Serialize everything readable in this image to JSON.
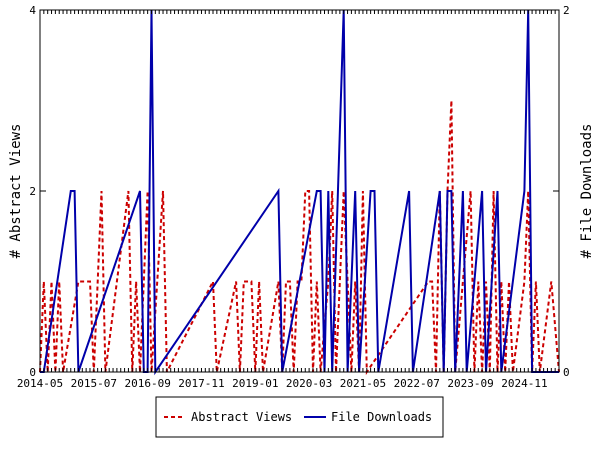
{
  "chart_data": {
    "type": "line",
    "title": "",
    "x_tick_labels": [
      "2014-05",
      "2015-07",
      "2016-09",
      "2017-11",
      "2019-01",
      "2020-03",
      "2021-05",
      "2022-07",
      "2023-09",
      "2024-11"
    ],
    "x_start": "2014-05",
    "x_end": "2025-08",
    "ylabel_left": "# Abstract Views",
    "ylabel_right": "# File Downloads",
    "ylim_left": [
      0,
      4
    ],
    "ylim_right": [
      0,
      2
    ],
    "yticks_left": [
      "0",
      "2",
      "4"
    ],
    "yticks_right": [
      "0",
      "1",
      "2"
    ],
    "grid": false,
    "legend_position": "bottom",
    "series": [
      {
        "name": "Abstract Views",
        "axis": "left",
        "color": "#cc0000",
        "style": "dashed",
        "points": [
          [
            "2014-05",
            0
          ],
          [
            "2014-06",
            1
          ],
          [
            "2014-07",
            0
          ],
          [
            "2014-08",
            1
          ],
          [
            "2014-09",
            0
          ],
          [
            "2014-10",
            1
          ],
          [
            "2014-11",
            0
          ],
          [
            "2015-03",
            1
          ],
          [
            "2015-04",
            1
          ],
          [
            "2015-05",
            1
          ],
          [
            "2015-06",
            1
          ],
          [
            "2015-07",
            0
          ],
          [
            "2015-08",
            1
          ],
          [
            "2015-09",
            2
          ],
          [
            "2015-10",
            0
          ],
          [
            "2016-04",
            2
          ],
          [
            "2016-05",
            0
          ],
          [
            "2016-06",
            1
          ],
          [
            "2016-07",
            0
          ],
          [
            "2016-08",
            1
          ],
          [
            "2016-09",
            2
          ],
          [
            "2016-10",
            0
          ],
          [
            "2017-01",
            2
          ],
          [
            "2017-02",
            0
          ],
          [
            "2018-02",
            1
          ],
          [
            "2018-03",
            0
          ],
          [
            "2018-08",
            1
          ],
          [
            "2018-09",
            0
          ],
          [
            "2018-10",
            1
          ],
          [
            "2018-11",
            1
          ],
          [
            "2018-12",
            1
          ],
          [
            "2019-01",
            0
          ],
          [
            "2019-02",
            1
          ],
          [
            "2019-03",
            0
          ],
          [
            "2019-07",
            1
          ],
          [
            "2019-08",
            0
          ],
          [
            "2019-09",
            1
          ],
          [
            "2019-10",
            1
          ],
          [
            "2019-11",
            0
          ],
          [
            "2019-12",
            1
          ],
          [
            "2020-01",
            1
          ],
          [
            "2020-02",
            2
          ],
          [
            "2020-03",
            2
          ],
          [
            "2020-04",
            0
          ],
          [
            "2020-05",
            1
          ],
          [
            "2020-06",
            0
          ],
          [
            "2020-08",
            1
          ],
          [
            "2020-09",
            2
          ],
          [
            "2020-10",
            0
          ],
          [
            "2020-12",
            2
          ],
          [
            "2021-01",
            1
          ],
          [
            "2021-02",
            0
          ],
          [
            "2021-03",
            1
          ],
          [
            "2021-04",
            0
          ],
          [
            "2021-05",
            2
          ],
          [
            "2021-06",
            0
          ],
          [
            "2022-10",
            1
          ],
          [
            "2022-11",
            1
          ],
          [
            "2022-12",
            0
          ],
          [
            "2023-01",
            2
          ],
          [
            "2023-02",
            0
          ],
          [
            "2023-03",
            2
          ],
          [
            "2023-04",
            3
          ],
          [
            "2023-05",
            0
          ],
          [
            "2023-09",
            2
          ],
          [
            "2023-10",
            0
          ],
          [
            "2023-11",
            1
          ],
          [
            "2023-12",
            0
          ],
          [
            "2024-01",
            1
          ],
          [
            "2024-02",
            0
          ],
          [
            "2024-03",
            2
          ],
          [
            "2024-04",
            0
          ],
          [
            "2024-05",
            1
          ],
          [
            "2024-06",
            0
          ],
          [
            "2024-07",
            1
          ],
          [
            "2024-08",
            0
          ],
          [
            "2024-11",
            1
          ],
          [
            "2024-12",
            2
          ],
          [
            "2025-01",
            0
          ],
          [
            "2025-02",
            1
          ],
          [
            "2025-03",
            0
          ],
          [
            "2025-06",
            1
          ]
        ]
      },
      {
        "name": "File Downloads",
        "axis": "right",
        "color": "#0000aa",
        "style": "solid",
        "points": [
          [
            "2014-05",
            0
          ],
          [
            "2014-06",
            0
          ],
          [
            "2015-01",
            1
          ],
          [
            "2015-02",
            1
          ],
          [
            "2015-03",
            0
          ],
          [
            "2016-07",
            1
          ],
          [
            "2016-08",
            0
          ],
          [
            "2016-09",
            0
          ],
          [
            "2016-10",
            2
          ],
          [
            "2016-11",
            0
          ],
          [
            "2019-07",
            1
          ],
          [
            "2019-08",
            0
          ],
          [
            "2020-05",
            1
          ],
          [
            "2020-06",
            1
          ],
          [
            "2020-07",
            0
          ],
          [
            "2020-08",
            1
          ],
          [
            "2020-09",
            0
          ],
          [
            "2020-12",
            2
          ],
          [
            "2021-01",
            0
          ],
          [
            "2021-03",
            1
          ],
          [
            "2021-04",
            0
          ],
          [
            "2021-07",
            1
          ],
          [
            "2021-08",
            1
          ],
          [
            "2021-09",
            0
          ],
          [
            "2022-05",
            1
          ],
          [
            "2022-06",
            0
          ],
          [
            "2023-01",
            1
          ],
          [
            "2023-02",
            0
          ],
          [
            "2023-03",
            1
          ],
          [
            "2023-04",
            1
          ],
          [
            "2023-05",
            0
          ],
          [
            "2023-07",
            1
          ],
          [
            "2023-08",
            0
          ],
          [
            "2023-12",
            1
          ],
          [
            "2024-01",
            0
          ],
          [
            "2024-04",
            1
          ],
          [
            "2024-05",
            0
          ],
          [
            "2024-11",
            1
          ],
          [
            "2024-12",
            2
          ],
          [
            "2025-01",
            0
          ]
        ]
      }
    ]
  }
}
